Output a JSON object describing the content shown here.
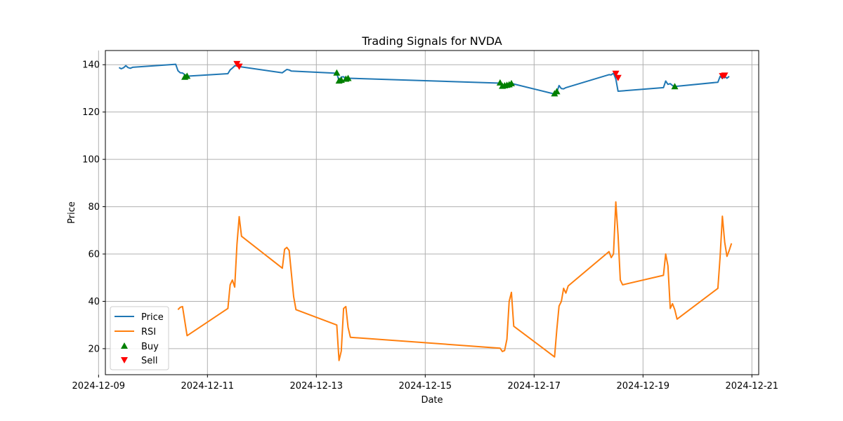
{
  "chart_data": {
    "type": "line",
    "title": "Trading Signals for NVDA",
    "xlabel": "Date",
    "ylabel": "Price",
    "xlim": [
      "2024-12-09T03:00",
      "2024-12-21T03:00"
    ],
    "ylim": [
      9,
      146
    ],
    "x_ticks": [
      "2024-12-09",
      "2024-12-11",
      "2024-12-13",
      "2024-12-15",
      "2024-12-17",
      "2024-12-19",
      "2024-12-21"
    ],
    "y_ticks": [
      20,
      40,
      60,
      80,
      100,
      120,
      140
    ],
    "grid": true,
    "legend_position": "lower-left",
    "series": [
      {
        "name": "Price",
        "color": "#1f77b4",
        "points": [
          [
            "2024-12-09T09:00",
            138.8
          ],
          [
            "2024-12-09T10:00",
            138.3
          ],
          [
            "2024-12-09T11:00",
            138.7
          ],
          [
            "2024-12-09T12:00",
            139.6
          ],
          [
            "2024-12-09T13:00",
            138.8
          ],
          [
            "2024-12-09T14:00",
            138.5
          ],
          [
            "2024-12-09T15:00",
            138.9
          ],
          [
            "2024-12-10T10:00",
            140.2
          ],
          [
            "2024-12-10T11:00",
            137.5
          ],
          [
            "2024-12-10T12:00",
            136.6
          ],
          [
            "2024-12-10T13:00",
            136.5
          ],
          [
            "2024-12-10T14:00",
            135.8
          ],
          [
            "2024-12-10T15:00",
            135.0
          ],
          [
            "2024-12-10T16:00",
            135.2
          ],
          [
            "2024-12-11T09:00",
            136.2
          ],
          [
            "2024-12-11T10:00",
            137.8
          ],
          [
            "2024-12-11T11:00",
            138.6
          ],
          [
            "2024-12-11T12:00",
            139.5
          ],
          [
            "2024-12-11T13:00",
            139.6
          ],
          [
            "2024-12-11T14:00",
            139.2
          ],
          [
            "2024-12-12T09:00",
            136.6
          ],
          [
            "2024-12-12T10:00",
            137.3
          ],
          [
            "2024-12-12T11:00",
            138.0
          ],
          [
            "2024-12-12T12:00",
            137.8
          ],
          [
            "2024-12-12T13:00",
            137.3
          ],
          [
            "2024-12-13T09:00",
            136.4
          ],
          [
            "2024-12-13T10:00",
            133.2
          ],
          [
            "2024-12-13T11:00",
            134.8
          ],
          [
            "2024-12-13T12:00",
            134.9
          ],
          [
            "2024-12-13T13:00",
            134.0
          ],
          [
            "2024-12-13T14:00",
            134.3
          ],
          [
            "2024-12-16T09:00",
            132.2
          ],
          [
            "2024-12-16T10:00",
            130.9
          ],
          [
            "2024-12-16T11:00",
            131.2
          ],
          [
            "2024-12-16T12:00",
            131.4
          ],
          [
            "2024-12-16T13:00",
            131.8
          ],
          [
            "2024-12-16T14:00",
            132.1
          ],
          [
            "2024-12-17T09:00",
            127.6
          ],
          [
            "2024-12-17T10:00",
            128.4
          ],
          [
            "2024-12-17T11:00",
            131.2
          ],
          [
            "2024-12-17T12:00",
            129.9
          ],
          [
            "2024-12-17T13:00",
            129.8
          ],
          [
            "2024-12-17T14:00",
            130.3
          ],
          [
            "2024-12-18T09:00",
            135.8
          ],
          [
            "2024-12-18T10:00",
            135.7
          ],
          [
            "2024-12-18T11:00",
            136.4
          ],
          [
            "2024-12-18T12:00",
            134.0
          ],
          [
            "2024-12-18T13:00",
            128.8
          ],
          [
            "2024-12-19T09:00",
            130.3
          ],
          [
            "2024-12-19T10:00",
            133.1
          ],
          [
            "2024-12-19T11:00",
            131.7
          ],
          [
            "2024-12-19T12:00",
            132.0
          ],
          [
            "2024-12-19T13:00",
            131.2
          ],
          [
            "2024-12-19T14:00",
            130.8
          ],
          [
            "2024-12-20T09:00",
            132.6
          ],
          [
            "2024-12-20T10:00",
            135.1
          ],
          [
            "2024-12-20T11:00",
            134.2
          ],
          [
            "2024-12-20T12:00",
            135.0
          ],
          [
            "2024-12-20T13:00",
            134.3
          ],
          [
            "2024-12-20T14:00",
            135.1
          ]
        ]
      },
      {
        "name": "RSI",
        "color": "#ff7f0e",
        "points": [
          [
            "2024-12-10T11:00",
            36.5
          ],
          [
            "2024-12-10T12:00",
            37.5
          ],
          [
            "2024-12-10T13:00",
            37.8
          ],
          [
            "2024-12-10T15:00",
            25.5
          ],
          [
            "2024-12-11T09:00",
            37.0
          ],
          [
            "2024-12-11T10:00",
            47.0
          ],
          [
            "2024-12-11T11:00",
            49.0
          ],
          [
            "2024-12-11T12:00",
            46.0
          ],
          [
            "2024-12-11T13:00",
            64.0
          ],
          [
            "2024-12-11T14:00",
            75.8
          ],
          [
            "2024-12-11T15:00",
            67.5
          ],
          [
            "2024-12-12T09:00",
            54.0
          ],
          [
            "2024-12-12T10:00",
            62.0
          ],
          [
            "2024-12-12T11:00",
            62.8
          ],
          [
            "2024-12-12T12:00",
            61.5
          ],
          [
            "2024-12-12T14:00",
            42.0
          ],
          [
            "2024-12-12T15:00",
            36.5
          ],
          [
            "2024-12-13T09:00",
            30.0
          ],
          [
            "2024-12-13T10:00",
            15.0
          ],
          [
            "2024-12-13T11:00",
            19.0
          ],
          [
            "2024-12-13T12:00",
            37.0
          ],
          [
            "2024-12-13T13:00",
            37.8
          ],
          [
            "2024-12-13T14:00",
            29.0
          ],
          [
            "2024-12-13T15:00",
            24.8
          ],
          [
            "2024-12-16T09:00",
            20.2
          ],
          [
            "2024-12-16T10:00",
            18.8
          ],
          [
            "2024-12-16T11:00",
            19.2
          ],
          [
            "2024-12-16T12:00",
            24.0
          ],
          [
            "2024-12-16T13:00",
            40.0
          ],
          [
            "2024-12-16T14:00",
            43.8
          ],
          [
            "2024-12-16T15:00",
            29.5
          ],
          [
            "2024-12-17T09:00",
            16.5
          ],
          [
            "2024-12-17T10:00",
            28.0
          ],
          [
            "2024-12-17T11:00",
            38.0
          ],
          [
            "2024-12-17T12:00",
            40.0
          ],
          [
            "2024-12-17T13:00",
            45.5
          ],
          [
            "2024-12-17T14:00",
            43.5
          ],
          [
            "2024-12-17T15:00",
            46.5
          ],
          [
            "2024-12-18T09:00",
            61.0
          ],
          [
            "2024-12-18T10:00",
            58.5
          ],
          [
            "2024-12-18T11:00",
            60.0
          ],
          [
            "2024-12-18T12:00",
            82.0
          ],
          [
            "2024-12-18T13:00",
            68.0
          ],
          [
            "2024-12-18T14:00",
            49.0
          ],
          [
            "2024-12-18T15:00",
            47.0
          ],
          [
            "2024-12-19T09:00",
            51.0
          ],
          [
            "2024-12-19T10:00",
            60.0
          ],
          [
            "2024-12-19T11:00",
            55.0
          ],
          [
            "2024-12-19T12:00",
            37.0
          ],
          [
            "2024-12-19T13:00",
            39.0
          ],
          [
            "2024-12-19T14:00",
            36.5
          ],
          [
            "2024-12-19T15:00",
            32.5
          ],
          [
            "2024-12-20T09:00",
            45.5
          ],
          [
            "2024-12-20T10:00",
            59.0
          ],
          [
            "2024-12-20T11:00",
            76.0
          ],
          [
            "2024-12-20T12:00",
            65.0
          ],
          [
            "2024-12-20T13:00",
            59.0
          ],
          [
            "2024-12-20T14:00",
            61.5
          ],
          [
            "2024-12-20T15:00",
            64.5
          ]
        ]
      }
    ],
    "buy_signals": {
      "name": "Buy",
      "color": "#008000",
      "points": [
        [
          "2024-12-10T14:00",
          134.8
        ],
        [
          "2024-12-10T15:00",
          135.2
        ],
        [
          "2024-12-13T09:00",
          136.6
        ],
        [
          "2024-12-13T10:00",
          133.2
        ],
        [
          "2024-12-13T11:00",
          133.5
        ],
        [
          "2024-12-13T13:00",
          134.0
        ],
        [
          "2024-12-13T14:00",
          134.3
        ],
        [
          "2024-12-16T09:00",
          132.4
        ],
        [
          "2024-12-16T10:00",
          131.0
        ],
        [
          "2024-12-16T11:00",
          131.2
        ],
        [
          "2024-12-16T12:00",
          131.4
        ],
        [
          "2024-12-16T13:00",
          131.6
        ],
        [
          "2024-12-16T14:00",
          132.1
        ],
        [
          "2024-12-17T09:00",
          127.8
        ],
        [
          "2024-12-17T10:00",
          128.7
        ],
        [
          "2024-12-19T14:00",
          130.8
        ]
      ]
    },
    "sell_signals": {
      "name": "Sell",
      "color": "#ff0000",
      "points": [
        [
          "2024-12-11T13:00",
          140.4
        ],
        [
          "2024-12-11T14:00",
          139.3
        ],
        [
          "2024-12-18T12:00",
          136.3
        ],
        [
          "2024-12-18T13:00",
          134.5
        ],
        [
          "2024-12-20T11:00",
          135.3
        ],
        [
          "2024-12-20T12:00",
          135.5
        ]
      ]
    }
  }
}
